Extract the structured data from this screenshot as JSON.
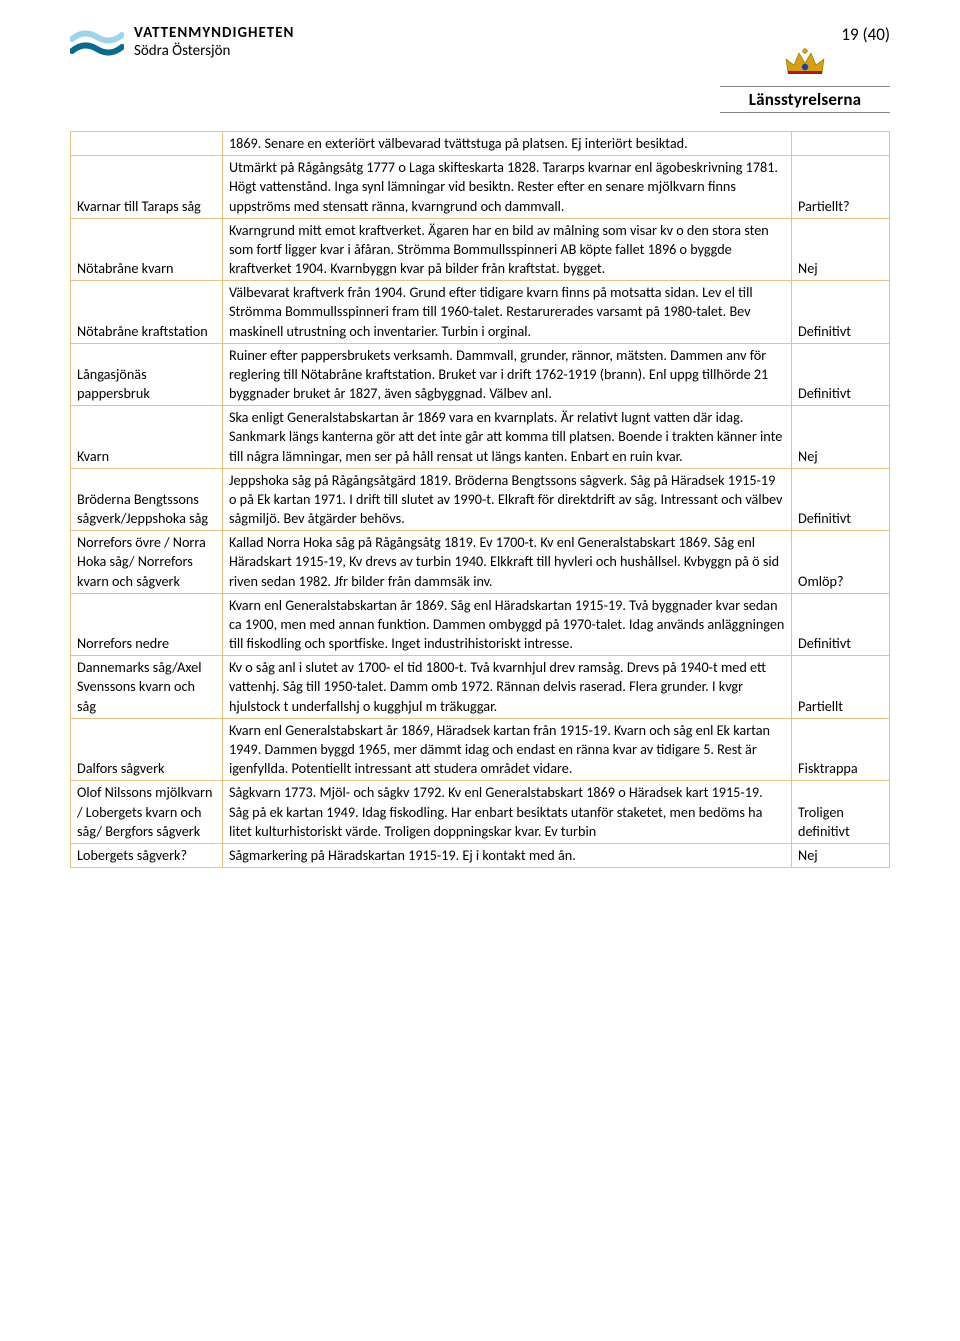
{
  "colors": {
    "border": "#e8c088",
    "text": "#000000",
    "background": "#ffffff",
    "waveLight": "#9fd4e8",
    "waveDark": "#0a6a8a",
    "crownGold": "#d4a015",
    "crownRed": "#b01818",
    "crownBlue": "#2340a0"
  },
  "fontsize": {
    "body": 14.2,
    "header": 17,
    "logo": 15
  },
  "pageNumber": "19 (40)",
  "leftLogo": {
    "line1": "VATTENMYNDIGHETEN",
    "line2": "Södra Östersjön"
  },
  "rightLogo": {
    "text": "Länsstyrelserna"
  },
  "table": {
    "columns": [
      "name",
      "description",
      "status"
    ],
    "rows": [
      {
        "name": "",
        "desc": "1869. Senare en exteriört välbevarad tvättstuga på platsen. Ej interiört besiktad.",
        "status": ""
      },
      {
        "name": "Kvarnar till Taraps såg",
        "desc": "Utmärkt på Rågångsåtg 1777 o  Laga skifteskarta 1828. Tararps kvarnar enl ägobeskrivning 1781. Högt vattenstånd. Inga synl lämningar vid besiktn. Rester efter en senare mjölkvarn finns uppströms med stensatt ränna, kvarngrund och dammvall.",
        "status": "Partiellt?"
      },
      {
        "name": "Nötabråne kvarn",
        "desc": "Kvarngrund mitt emot kraftverket. Ägaren har en bild av målning som visar kv o den stora sten som fortf ligger kvar i åfåran. Strömma Bommullsspinneri AB köpte fallet 1896 o byggde kraftverket 1904. Kvarnbyggn kvar på bilder från kraftstat. bygget.",
        "status": "Nej"
      },
      {
        "name": "Nötabråne kraftstation",
        "desc": "Välbevarat kraftverk från 1904. Grund efter tidigare kvarn finns på motsatta sidan. Lev el till Strömma Bommullsspinneri fram till 1960-talet. Restarurerades varsamt på 1980-talet. Bev maskinell utrustning och inventarier. Turbin i orginal.",
        "status": "Definitivt"
      },
      {
        "name": "Långasjönäs pappersbruk",
        "desc": "Ruiner efter pappersbrukets verksamh. Dammvall, grunder, rännor, mätsten. Dammen anv för reglering  till Nötabråne kraftstation. Bruket var i drift 1762-1919 (brann). Enl uppg tillhörde 21 byggnader bruket år 1827, även sågbyggnad. Välbev anl.",
        "status": "Definitivt"
      },
      {
        "name": "Kvarn",
        "desc": "Ska enligt Generalstabskartan år 1869 vara en kvarnplats. Är relativt lugnt vatten där idag. Sankmark längs kanterna gör att det inte går att komma till platsen. Boende i trakten känner inte till några lämningar, men ser på håll rensat ut längs kanten. Enbart en ruin kvar.",
        "status": "Nej"
      },
      {
        "name": "Bröderna Bengtssons sågverk/Jeppshoka såg",
        "desc": "Jeppshoka såg på Rågångsåtgärd 1819.  Bröderna Bengtssons sågverk. Såg på Häradsek 1915-19 o på Ek kartan 1971. I drift till slutet av 1990-t. Elkraft för direktdrift av såg. Intressant och välbev sågmiljö. Bev åtgärder behövs.",
        "status": "Definitivt"
      },
      {
        "name": "Norrefors övre / Norra Hoka såg/ Norrefors kvarn och sågverk",
        "desc": "Kallad Norra Hoka såg på Rågångsåtg 1819. Ev 1700-t. Kv enl Generalstabskart 1869. Såg enl Häradskart 1915-19,  Kv drevs av turbin 1940. Elkkraft till hyvleri och hushållsel. Kvbyggn på ö sid riven sedan 1982. Jfr bilder från dammsäk inv.",
        "status": "Omlöp?"
      },
      {
        "name": "Norrefors nedre",
        "desc": "Kvarn enl Generalstabskartan år 1869. Såg enl Häradskartan 1915-19. Två byggnader kvar sedan ca 1900, men med annan funktion. Dammen ombyggd på 1970-talet. Idag används anläggningen till fiskodling och sportfiske. Inget industrihistoriskt intresse.",
        "status": "Definitivt"
      },
      {
        "name": "Dannemarks såg/Axel Svenssons kvarn och såg",
        "desc": "Kv o såg anl i slutet av 1700- el tid 1800-t. Två kvarnhjul drev ramsåg. Drevs på 1940-t med ett vattenhj. Såg till 1950-talet. Damm omb 1972. Rännan delvis raserad. Flera grunder. I kvgr hjulstock t underfallshj o kugghjul m träkuggar.",
        "status": "Partiellt"
      },
      {
        "name": "Dalfors sågverk",
        "desc": "Kvarn enl Generalstabskart år 1869,  Häradsek kartan från 1915-19. Kvarn och såg enl Ek kartan 1949. Dammen byggd 1965, mer dämmt idag och endast en ränna kvar av tidigare 5. Rest är igenfyllda.  Potentiellt intressant att studera området vidare.",
        "status": "Fisktrappa"
      },
      {
        "name": "Olof Nilssons mjölkvarn / Lobergets kvarn och såg/ Bergfors sågverk",
        "desc": "Sågkvarn 1773. Mjöl- och sågkv 1792. Kv enl Generalstabskart 1869 o Häradsek kart 1915-19. Såg på ek kartan 1949.  Idag fiskodling. Har enbart besiktats utanför staketet, men bedöms ha litet kulturhistoriskt värde. Troligen doppningskar kvar. Ev turbin",
        "status": "Troligen definitivt"
      },
      {
        "name": "Lobergets sågverk?",
        "desc": "Sågmarkering på Häradskartan 1915-19. Ej i kontakt med ån.",
        "status": "Nej"
      }
    ]
  }
}
